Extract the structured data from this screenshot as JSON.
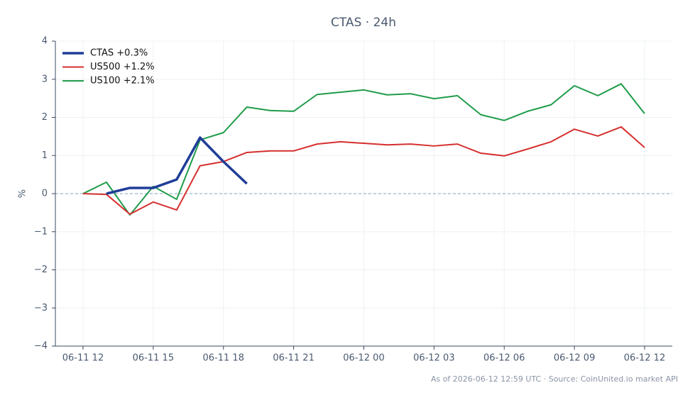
{
  "chart_data": {
    "type": "line",
    "title": "CTAS · 24h",
    "y_label": "%",
    "footer": "As of 2026-06-12 12:59 UTC · Source: CoinUnited.io market API",
    "categories": [
      "06-11 12",
      null,
      null,
      "06-11 15",
      null,
      null,
      "06-11 18",
      null,
      null,
      "06-11 21",
      null,
      null,
      "06-12 00",
      null,
      null,
      "06-12 03",
      null,
      null,
      "06-12 06",
      null,
      null,
      "06-12 09",
      null,
      null,
      "06-12 12"
    ],
    "series": [
      {
        "name": "CTAS +0.3%",
        "color": "#1f3d99",
        "width": 3.5,
        "values": [
          null,
          0,
          0.15,
          0.15,
          0.37,
          1.47,
          0.84,
          0.26,
          null,
          null,
          null,
          null,
          null,
          null,
          null,
          null,
          null,
          null,
          null,
          null,
          null,
          null,
          null,
          null,
          null
        ]
      },
      {
        "name": "US500 +1.2%",
        "color": "#d62f2f",
        "width": 2,
        "values": [
          0,
          -0.02,
          -0.54,
          -0.22,
          -0.43,
          0.73,
          0.84,
          1.08,
          1.12,
          1.12,
          1.3,
          1.36,
          1.32,
          1.28,
          1.3,
          1.25,
          1.3,
          1.06,
          0.99,
          1.17,
          1.36,
          1.69,
          1.51,
          1.75,
          1.21
        ]
      },
      {
        "name": "US100 +2.1%",
        "color": "#1f9c4a",
        "width": 2,
        "values": [
          0,
          0.3,
          -0.56,
          0.19,
          -0.15,
          1.41,
          1.6,
          2.27,
          2.18,
          2.16,
          2.6,
          2.66,
          2.72,
          2.59,
          2.62,
          2.49,
          2.57,
          2.07,
          1.92,
          2.16,
          2.33,
          2.83,
          2.57,
          2.88,
          2.1
        ]
      }
    ],
    "ylim": [
      -4,
      4
    ],
    "yticks": [
      {
        "value": -4,
        "label": "−4"
      },
      {
        "value": -3,
        "label": "−3"
      },
      {
        "value": -2,
        "label": "−2"
      },
      {
        "value": -1,
        "label": "−1"
      },
      0,
      1,
      2,
      3,
      4
    ],
    "reference_line": 0,
    "grid": true,
    "legend": "upper-left"
  }
}
